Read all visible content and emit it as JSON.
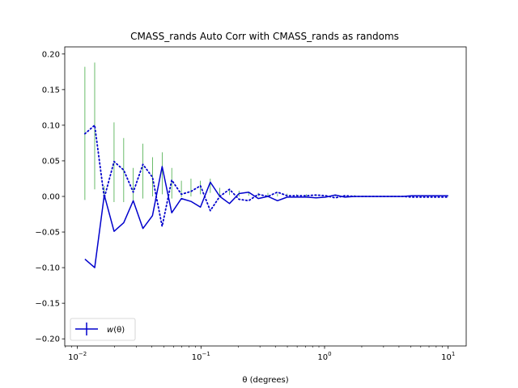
{
  "chart_data": {
    "type": "line",
    "title": "CMASS_rands Auto Corr with CMASS_rands as randoms",
    "xlabel": "θ (degrees)",
    "ylabel": "",
    "xscale": "log",
    "xlim": [
      0.0079,
      14.0
    ],
    "ylim": [
      -0.21,
      0.21
    ],
    "yticks": [
      -0.2,
      -0.15,
      -0.1,
      -0.05,
      0.0,
      0.05,
      0.1,
      0.15,
      0.2
    ],
    "ytick_labels": [
      "−0.20",
      "−0.15",
      "−0.10",
      "−0.05",
      "0.00",
      "0.05",
      "0.10",
      "0.15",
      "0.20"
    ],
    "xticks": [
      0.01,
      0.1,
      1,
      10
    ],
    "xtick_base": "10",
    "xtick_exponents": [
      "−2",
      "−1",
      "0",
      "1"
    ],
    "grid": false,
    "legend_position": "lower-left",
    "colors": {
      "line": "#0000cc",
      "errorbar": "#2ca02c",
      "frame": "#000000"
    },
    "series": [
      {
        "name": "w(θ)",
        "legend_label_main": "w",
        "legend_label_arg": "(θ)",
        "style": "solid",
        "x": [
          0.0115,
          0.0138,
          0.0165,
          0.0198,
          0.0237,
          0.0283,
          0.0339,
          0.0405,
          0.0485,
          0.058,
          0.0694,
          0.083,
          0.099,
          0.119,
          0.142,
          0.17,
          0.203,
          0.243,
          0.291,
          0.348,
          0.416,
          0.498,
          0.596,
          0.713,
          0.853,
          1.02,
          1.22,
          1.46,
          1.75,
          2.09,
          2.5,
          2.99,
          3.58,
          4.28,
          5.13,
          6.13,
          7.34,
          10.0
        ],
        "y": [
          -0.088,
          -0.1,
          0.002,
          -0.049,
          -0.037,
          -0.006,
          -0.045,
          -0.027,
          0.042,
          -0.023,
          -0.003,
          -0.007,
          -0.015,
          0.02,
          0.0,
          -0.01,
          0.004,
          0.006,
          -0.003,
          0.0,
          -0.006,
          -0.001,
          -0.001,
          -0.001,
          -0.002,
          -0.001,
          0.002,
          -0.001,
          0.0,
          0.0,
          0.0,
          0.0,
          0.0,
          0.0,
          0.001,
          0.001,
          0.001,
          0.001
        ],
        "yerr_low": [
          -0.005,
          0.01,
          -0.005,
          -0.008,
          -0.008,
          -0.005,
          -0.003,
          0.0,
          0.003,
          -0.003,
          -0.001,
          0.0,
          0.003,
          0.005,
          0.0,
          0.002,
          0.0,
          0.001,
          0.0,
          0.0,
          0.0,
          0.0,
          0.0,
          0.0,
          0.0,
          0.0,
          0.0,
          0.0,
          0.0,
          0.0,
          0.0,
          0.0,
          0.0,
          0.0,
          0.0,
          0.0,
          0.0,
          0.0
        ],
        "yerr_high": [
          0.182,
          0.188,
          0.015,
          0.104,
          0.082,
          0.04,
          0.074,
          0.055,
          0.062,
          0.04,
          0.022,
          0.025,
          0.022,
          0.025,
          0.012,
          0.01,
          0.008,
          0.006,
          0.005,
          0.005,
          0.004,
          0.004,
          0.003,
          0.003,
          0.003,
          0.002,
          0.002,
          0.002,
          0.002,
          0.001,
          0.001,
          0.001,
          0.001,
          0.001,
          0.001,
          0.001,
          0.001,
          0.001
        ]
      },
      {
        "style": "dotted",
        "x": [
          0.0115,
          0.0138,
          0.0165,
          0.0198,
          0.0237,
          0.0283,
          0.0339,
          0.0405,
          0.0485,
          0.058,
          0.0694,
          0.083,
          0.099,
          0.119,
          0.142,
          0.17,
          0.203,
          0.243,
          0.291,
          0.348,
          0.416,
          0.498,
          0.596,
          0.713,
          0.853,
          1.02,
          1.22,
          1.46,
          1.75,
          2.09,
          2.5,
          2.99,
          3.58,
          4.28,
          5.13,
          6.13,
          7.34,
          10.0
        ],
        "y": [
          0.088,
          0.1,
          -0.002,
          0.049,
          0.037,
          0.006,
          0.045,
          0.027,
          -0.042,
          0.023,
          0.003,
          0.007,
          0.015,
          -0.02,
          0.0,
          0.01,
          -0.004,
          -0.006,
          0.003,
          0.0,
          0.006,
          0.001,
          0.001,
          0.001,
          0.002,
          0.001,
          -0.002,
          0.001,
          0.0,
          0.0,
          0.0,
          0.0,
          0.0,
          0.0,
          -0.001,
          -0.001,
          -0.001,
          -0.001
        ]
      }
    ]
  }
}
